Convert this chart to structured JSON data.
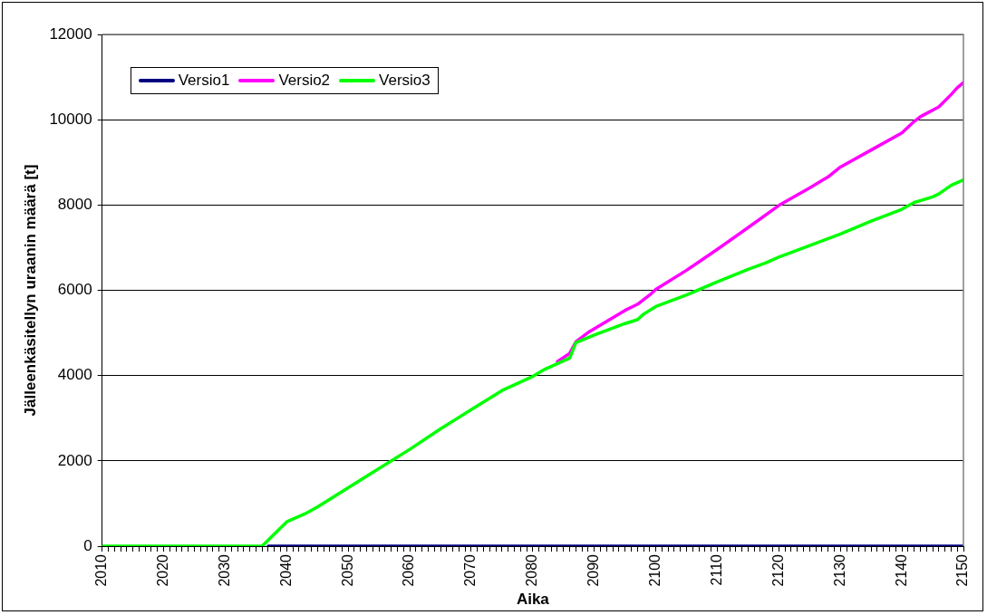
{
  "chart_data": {
    "type": "line",
    "xlabel": "Aika",
    "ylabel": "Jälleenkäsitellyn uraanin määrä [t]",
    "xlim": [
      2010,
      2150
    ],
    "xticks": [
      2010,
      {
        "value": 2011,
        "label": null
      },
      {
        "value": 2012,
        "label": null
      },
      {
        "value": 2013,
        "label": null
      },
      {
        "value": 2014,
        "label": null
      },
      {
        "value": 2015,
        "label": null
      },
      {
        "value": 2016,
        "label": null
      },
      {
        "value": 2017,
        "label": null
      },
      {
        "value": 2018,
        "label": null
      },
      {
        "value": 2019,
        "label": null
      },
      2020,
      {
        "value": 2021,
        "label": null
      },
      {
        "value": 2022,
        "label": null
      },
      {
        "value": 2023,
        "label": null
      },
      {
        "value": 2024,
        "label": null
      },
      {
        "value": 2025,
        "label": null
      },
      {
        "value": 2026,
        "label": null
      },
      {
        "value": 2027,
        "label": null
      },
      {
        "value": 2028,
        "label": null
      },
      {
        "value": 2029,
        "label": null
      },
      2030,
      {
        "value": 2031,
        "label": null
      },
      {
        "value": 2032,
        "label": null
      },
      {
        "value": 2033,
        "label": null
      },
      {
        "value": 2034,
        "label": null
      },
      {
        "value": 2035,
        "label": null
      },
      {
        "value": 2036,
        "label": null
      },
      {
        "value": 2037,
        "label": null
      },
      {
        "value": 2038,
        "label": null
      },
      {
        "value": 2039,
        "label": null
      },
      2040,
      {
        "value": 2041,
        "label": null
      },
      {
        "value": 2042,
        "label": null
      },
      {
        "value": 2043,
        "label": null
      },
      {
        "value": 2044,
        "label": null
      },
      {
        "value": 2045,
        "label": null
      },
      {
        "value": 2046,
        "label": null
      },
      {
        "value": 2047,
        "label": null
      },
      {
        "value": 2048,
        "label": null
      },
      {
        "value": 2049,
        "label": null
      },
      2050,
      {
        "value": 2051,
        "label": null
      },
      {
        "value": 2052,
        "label": null
      },
      {
        "value": 2053,
        "label": null
      },
      {
        "value": 2054,
        "label": null
      },
      {
        "value": 2055,
        "label": null
      },
      {
        "value": 2056,
        "label": null
      },
      {
        "value": 2057,
        "label": null
      },
      {
        "value": 2058,
        "label": null
      },
      {
        "value": 2059,
        "label": null
      },
      2060,
      {
        "value": 2061,
        "label": null
      },
      {
        "value": 2062,
        "label": null
      },
      {
        "value": 2063,
        "label": null
      },
      {
        "value": 2064,
        "label": null
      },
      {
        "value": 2065,
        "label": null
      },
      {
        "value": 2066,
        "label": null
      },
      {
        "value": 2067,
        "label": null
      },
      {
        "value": 2068,
        "label": null
      },
      {
        "value": 2069,
        "label": null
      },
      2070,
      {
        "value": 2071,
        "label": null
      },
      {
        "value": 2072,
        "label": null
      },
      {
        "value": 2073,
        "label": null
      },
      {
        "value": 2074,
        "label": null
      },
      {
        "value": 2075,
        "label": null
      },
      {
        "value": 2076,
        "label": null
      },
      {
        "value": 2077,
        "label": null
      },
      {
        "value": 2078,
        "label": null
      },
      {
        "value": 2079,
        "label": null
      },
      2080,
      {
        "value": 2081,
        "label": null
      },
      {
        "value": 2082,
        "label": null
      },
      {
        "value": 2083,
        "label": null
      },
      {
        "value": 2084,
        "label": null
      },
      {
        "value": 2085,
        "label": null
      },
      {
        "value": 2086,
        "label": null
      },
      {
        "value": 2087,
        "label": null
      },
      {
        "value": 2088,
        "label": null
      },
      {
        "value": 2089,
        "label": null
      },
      2090,
      {
        "value": 2091,
        "label": null
      },
      {
        "value": 2092,
        "label": null
      },
      {
        "value": 2093,
        "label": null
      },
      {
        "value": 2094,
        "label": null
      },
      {
        "value": 2095,
        "label": null
      },
      {
        "value": 2096,
        "label": null
      },
      {
        "value": 2097,
        "label": null
      },
      {
        "value": 2098,
        "label": null
      },
      {
        "value": 2099,
        "label": null
      },
      2100,
      {
        "value": 2101,
        "label": null
      },
      {
        "value": 2102,
        "label": null
      },
      {
        "value": 2103,
        "label": null
      },
      {
        "value": 2104,
        "label": null
      },
      {
        "value": 2105,
        "label": null
      },
      {
        "value": 2106,
        "label": null
      },
      {
        "value": 2107,
        "label": null
      },
      {
        "value": 2108,
        "label": null
      },
      {
        "value": 2109,
        "label": null
      },
      2110,
      {
        "value": 2111,
        "label": null
      },
      {
        "value": 2112,
        "label": null
      },
      {
        "value": 2113,
        "label": null
      },
      {
        "value": 2114,
        "label": null
      },
      {
        "value": 2115,
        "label": null
      },
      {
        "value": 2116,
        "label": null
      },
      {
        "value": 2117,
        "label": null
      },
      {
        "value": 2118,
        "label": null
      },
      {
        "value": 2119,
        "label": null
      },
      2120,
      {
        "value": 2121,
        "label": null
      },
      {
        "value": 2122,
        "label": null
      },
      {
        "value": 2123,
        "label": null
      },
      {
        "value": 2124,
        "label": null
      },
      {
        "value": 2125,
        "label": null
      },
      {
        "value": 2126,
        "label": null
      },
      {
        "value": 2127,
        "label": null
      },
      {
        "value": 2128,
        "label": null
      },
      {
        "value": 2129,
        "label": null
      },
      2130,
      {
        "value": 2131,
        "label": null
      },
      {
        "value": 2132,
        "label": null
      },
      {
        "value": 2133,
        "label": null
      },
      {
        "value": 2134,
        "label": null
      },
      {
        "value": 2135,
        "label": null
      },
      {
        "value": 2136,
        "label": null
      },
      {
        "value": 2137,
        "label": null
      },
      {
        "value": 2138,
        "label": null
      },
      {
        "value": 2139,
        "label": null
      },
      2140,
      {
        "value": 2141,
        "label": null
      },
      {
        "value": 2142,
        "label": null
      },
      {
        "value": 2143,
        "label": null
      },
      {
        "value": 2144,
        "label": null
      },
      {
        "value": 2145,
        "label": null
      },
      {
        "value": 2146,
        "label": null
      },
      {
        "value": 2147,
        "label": null
      },
      {
        "value": 2148,
        "label": null
      },
      {
        "value": 2149,
        "label": null
      },
      2150
    ],
    "ylim": [
      0,
      12000
    ],
    "yticks": [
      0,
      2000,
      4000,
      6000,
      8000,
      10000,
      12000
    ],
    "grid": "y",
    "legend": "top left",
    "marker": "none",
    "line_style": "solid",
    "series": [
      {
        "name": "Versio1",
        "color": "#000080",
        "x": [
          2037,
          2150
        ],
        "values": [
          0,
          0
        ]
      },
      {
        "name": "Versio2",
        "color": "#ff00ff",
        "x": [
          2084,
          2086,
          2087,
          2089,
          2095,
          2097,
          2099,
          2100,
          2105,
          2110,
          2115,
          2120,
          2125,
          2128,
          2130,
          2135,
          2140,
          2142,
          2143,
          2146,
          2148,
          2149,
          2150
        ],
        "values": [
          4330,
          4520,
          4790,
          5010,
          5530,
          5670,
          5890,
          6020,
          6470,
          6960,
          7470,
          7990,
          8400,
          8660,
          8890,
          9290,
          9690,
          9960,
          10070,
          10300,
          10590,
          10750,
          10870
        ]
      },
      {
        "name": "Versio3",
        "color": "#00ff00",
        "x": [
          2010,
          2036,
          2040,
          2043,
          2045,
          2050,
          2055,
          2060,
          2065,
          2070,
          2075,
          2080,
          2082,
          2086,
          2087,
          2090,
          2095,
          2097,
          2098,
          2100,
          2105,
          2110,
          2115,
          2118,
          2120,
          2125,
          2130,
          2135,
          2140,
          2142,
          2145,
          2146,
          2148,
          2150
        ],
        "values": [
          0,
          0,
          570,
          760,
          920,
          1370,
          1820,
          2270,
          2750,
          3200,
          3650,
          3980,
          4150,
          4410,
          4770,
          4950,
          5220,
          5310,
          5440,
          5620,
          5890,
          6200,
          6490,
          6650,
          6780,
          7050,
          7320,
          7620,
          7900,
          8060,
          8190,
          8260,
          8460,
          8590
        ]
      }
    ]
  }
}
